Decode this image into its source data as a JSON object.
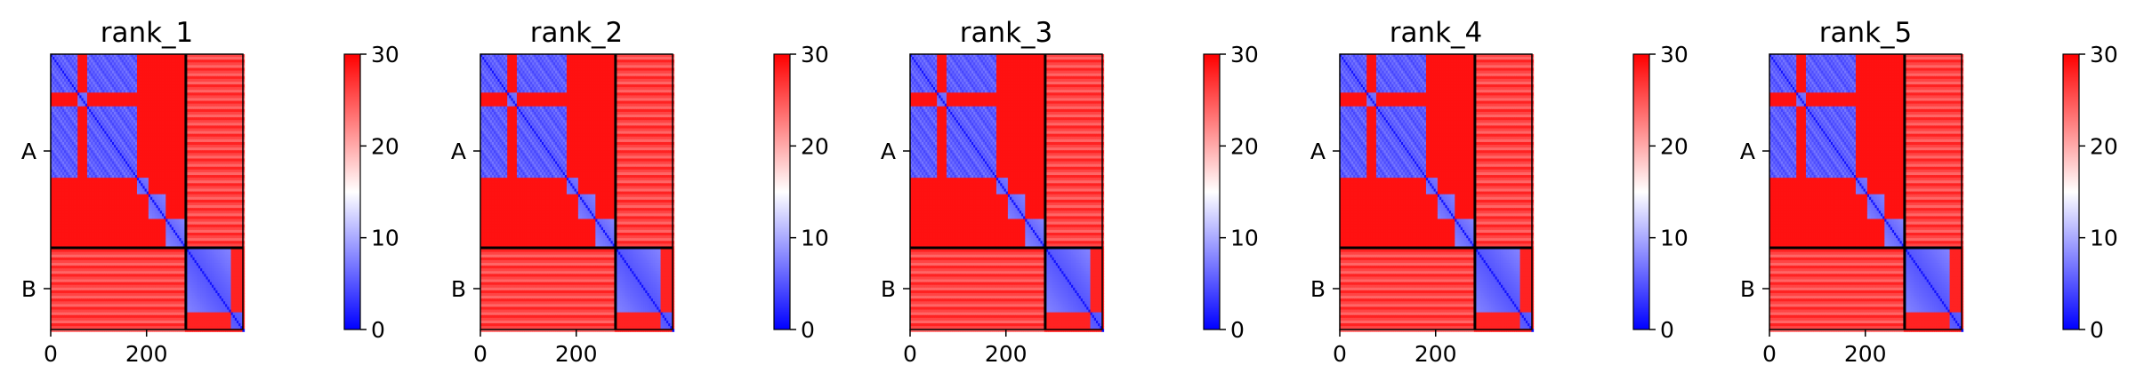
{
  "chart_data": {
    "type": "heatmap",
    "colormap": {
      "name": "bwr",
      "low": "#0000ff",
      "mid": "#ffffff",
      "high": "#ff0000"
    },
    "colorbar": {
      "range": [
        0,
        30
      ],
      "ticks": [
        0,
        10,
        20,
        30
      ]
    },
    "chains": [
      {
        "label": "A",
        "start": 0,
        "end": 282
      },
      {
        "label": "B",
        "start": 282,
        "end": 401
      }
    ],
    "total_length": 401,
    "x_ticks": [
      0,
      200
    ],
    "domain_blocks": [
      [
        0,
        55
      ],
      [
        55,
        75
      ],
      [
        75,
        95
      ],
      [
        95,
        182
      ],
      [
        182,
        205
      ],
      [
        205,
        240
      ],
      [
        240,
        282
      ],
      [
        282,
        375
      ],
      [
        375,
        401
      ]
    ],
    "panels": [
      {
        "title": "rank_1"
      },
      {
        "title": "rank_2"
      },
      {
        "title": "rank_3"
      },
      {
        "title": "rank_4"
      },
      {
        "title": "rank_5"
      }
    ]
  }
}
